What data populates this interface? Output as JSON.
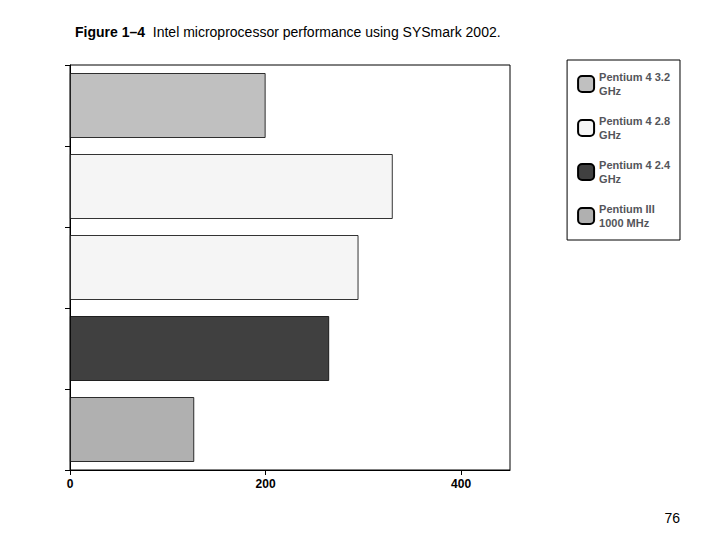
{
  "chart_data": {
    "type": "bar",
    "orientation": "horizontal",
    "title": "Figure 1–4  Intel microprocessor performance using SYSmark 2002.",
    "annotations": [
      "76"
    ],
    "categories": [
      null,
      null,
      null,
      null,
      null
    ],
    "series": [
      {
        "name": "Pentium 4 3.2\nGHz",
        "color": "#c0c0c0",
        "values": [
          200,
          null,
          null,
          null,
          null
        ]
      },
      {
        "name": "Pentium 4 2.8\nGHz",
        "color": "#f5f5f5",
        "values": [
          null,
          330,
          295,
          null,
          null
        ]
      },
      {
        "name": "Pentium 4 2.4\nGHz",
        "color": "#404040",
        "values": [
          null,
          null,
          null,
          265,
          null
        ]
      },
      {
        "name": "Pentium III\n1000 MHz",
        "color": "#b0b0b0",
        "values": [
          null,
          null,
          null,
          null,
          127
        ]
      }
    ],
    "xlim": [
      0,
      450
    ],
    "xticks": [
      0,
      200,
      400
    ],
    "grid": false,
    "legend": "upper right",
    "tick_labels": "x"
  }
}
